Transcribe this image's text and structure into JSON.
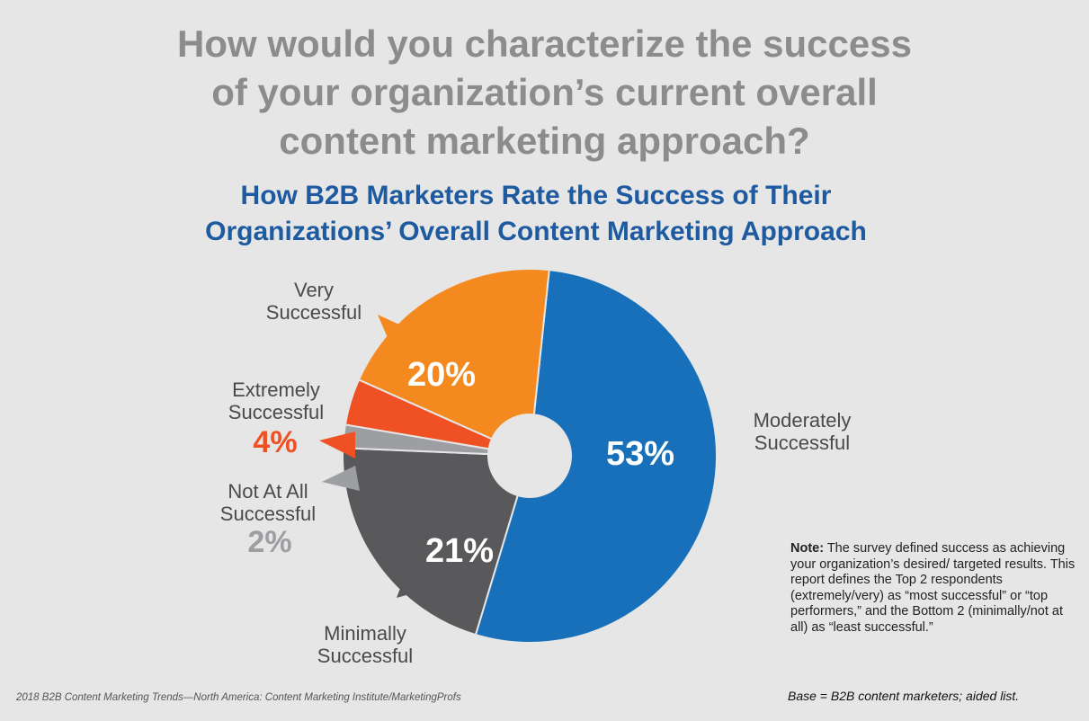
{
  "title": {
    "lines": [
      "How would you characterize the success",
      "of your organization’s current overall",
      "content marketing approach?"
    ]
  },
  "subtitle": {
    "lines": [
      "How B2B Marketers Rate the Success of Their",
      "Organizations’ Overall Content Marketing Approach"
    ]
  },
  "colors": {
    "moderately": "#1770b9",
    "minimally": "#59595c",
    "not_at_all": "#9d9ea1",
    "extremely": "#ef5124",
    "very": "#f4891f",
    "background": "#e6e6e6"
  },
  "chart_data": {
    "type": "pie",
    "donut": true,
    "slices": [
      {
        "label": [
          "Moderately",
          "Successful"
        ],
        "value": 53,
        "value_label": "53%",
        "color": "#1770b9"
      },
      {
        "label": [
          "Minimally",
          "Successful"
        ],
        "value": 21,
        "value_label": "21%",
        "color": "#59595c"
      },
      {
        "label": [
          "Not At All",
          "Successful"
        ],
        "value": 2,
        "value_label": "2%",
        "color": "#9d9ea1"
      },
      {
        "label": [
          "Extremely",
          "Successful"
        ],
        "value": 4,
        "value_label": "4%",
        "color": "#ef5124"
      },
      {
        "label": [
          "Very",
          "Successful"
        ],
        "value": 20,
        "value_label": "20%",
        "color": "#f4891f"
      }
    ]
  },
  "note": {
    "bold": "Note:",
    "text": " The survey defined success as achieving your organization’s desired/ targeted results. This report defines the Top 2 respondents (extremely/very) as “most successful” or “top performers,” and the Bottom 2 (minimally/not at all) as “least successful.”"
  },
  "footer": {
    "source": "2018 B2B Content Marketing Trends—North America: Content Marketing Institute/MarketingProfs",
    "base": "Base = B2B content marketers; aided list."
  }
}
